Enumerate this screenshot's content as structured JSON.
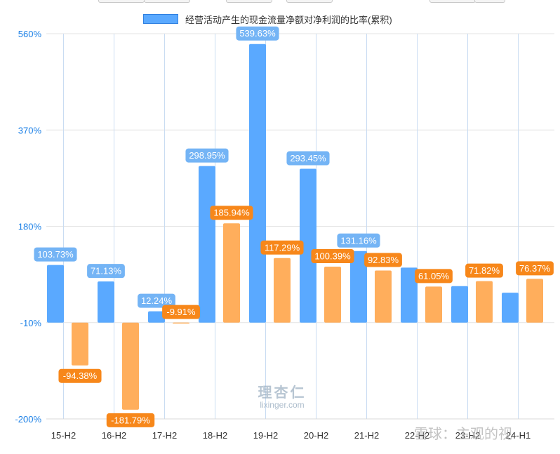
{
  "chart_data": {
    "type": "bar",
    "categories": [
      "15-H2",
      "16-H2",
      "17-H2",
      "18-H2",
      "19-H2",
      "20-H2",
      "21-H2",
      "22-H2",
      "23-H2",
      "24-H1"
    ],
    "x_tick_labels": [
      "15-H2",
      "16-H2",
      "17-H2",
      "18-H2",
      "19-H2",
      "20-H2",
      "21-H2",
      "22-H2",
      "23-H2",
      "24-H1"
    ],
    "y_tick_labels": [
      "560%",
      "370%",
      "180%",
      "-10%",
      "-200%"
    ],
    "ylim": [
      -200,
      560
    ],
    "y_unit": "%",
    "grid": true,
    "legend_position": "top-center",
    "series": [
      {
        "name": "经营活动产生的现金流量净额对净利润的比率(累积)",
        "color": "#5aa9ff",
        "label_color": "#74b4f5",
        "values": [
          103.73,
          71.13,
          12.24,
          298.95,
          539.63,
          293.45,
          131.16,
          98.5,
          62.0,
          49.0
        ],
        "labels": [
          "103.73%",
          "71.13%",
          "12.24%",
          "298.95%",
          "539.63%",
          "293.45%",
          "131.16%",
          "",
          "",
          ""
        ]
      },
      {
        "color": "#ffae5c",
        "label_color": "#f7871a",
        "values": [
          -94.38,
          -181.79,
          -9.91,
          185.94,
          117.29,
          100.39,
          92.83,
          61.05,
          71.82,
          76.37
        ],
        "labels": [
          "-94.38%",
          "-181.79%",
          "-9.91%",
          "185.94%",
          "117.29%",
          "100.39%",
          "92.83%",
          "61.05%",
          "71.82%",
          "76.37%"
        ]
      }
    ]
  },
  "watermark": {
    "main": "理杏仁",
    "sub": "lixinger.com"
  },
  "corner_mark": "雪球：主观的视"
}
